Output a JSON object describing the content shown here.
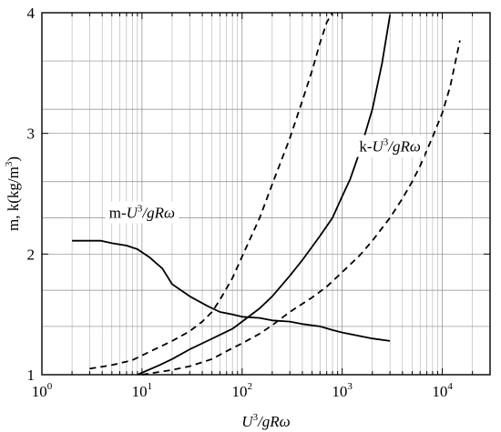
{
  "chart_data": {
    "type": "line",
    "x_scale": "log",
    "y_scale": "linear",
    "xlim": [
      1,
      30000
    ],
    "ylim": [
      1,
      4
    ],
    "grid": true,
    "x_ticks": [
      {
        "base": "10",
        "exp": "0"
      },
      {
        "base": "10",
        "exp": "1"
      },
      {
        "base": "10",
        "exp": "2"
      },
      {
        "base": "10",
        "exp": "3"
      },
      {
        "base": "10",
        "exp": "4"
      }
    ],
    "x_tick_values": [
      1,
      10,
      100,
      1000,
      10000
    ],
    "y_ticks": [
      "1",
      "2",
      "3",
      "4"
    ],
    "y_tick_values": [
      1,
      2,
      3,
      4
    ],
    "y_grid_values": [
      1.4,
      1.7,
      2.3,
      2.6,
      3.2,
      3.6
    ],
    "xlabel": {
      "main": "U",
      "sup": "3",
      "rest": "/gRω"
    },
    "ylabel": {
      "main": "m, k(kg/m",
      "sup": "3",
      "rest": ")"
    },
    "annotations": [
      {
        "prefix": "m-",
        "main": "U",
        "sup": "3",
        "rest": "/gRω",
        "x": 10,
        "y": 2.3
      },
      {
        "prefix": "k-",
        "main": "U",
        "sup": "3",
        "rest": "/gRω",
        "x": 3000,
        "y": 2.85
      }
    ],
    "series": [
      {
        "style": "solid",
        "x": [
          2,
          3.9,
          5,
          7,
          9,
          12,
          16,
          20,
          30,
          45,
          60,
          80,
          100,
          150,
          200,
          300,
          400,
          600,
          800,
          1000,
          1500,
          2000,
          3000
        ],
        "y": [
          2.11,
          2.11,
          2.09,
          2.07,
          2.04,
          1.97,
          1.88,
          1.75,
          1.65,
          1.57,
          1.52,
          1.5,
          1.48,
          1.47,
          1.45,
          1.44,
          1.42,
          1.4,
          1.37,
          1.35,
          1.32,
          1.3,
          1.28
        ]
      },
      {
        "style": "solid",
        "x": [
          9,
          15,
          20,
          30,
          40,
          60,
          80,
          100,
          150,
          200,
          300,
          400,
          500,
          600,
          800,
          1000,
          1200,
          1500,
          2000,
          2500,
          3000
        ],
        "y": [
          1.0,
          1.08,
          1.13,
          1.21,
          1.26,
          1.33,
          1.38,
          1.44,
          1.55,
          1.65,
          1.82,
          1.95,
          2.06,
          2.15,
          2.3,
          2.48,
          2.62,
          2.85,
          3.2,
          3.58,
          3.98
        ]
      },
      {
        "style": "dashed",
        "x": [
          3,
          5,
          8,
          10,
          15,
          20,
          30,
          40,
          50,
          60,
          80,
          100,
          150,
          200,
          300,
          400,
          500,
          600,
          700,
          800
        ],
        "y": [
          1.05,
          1.08,
          1.12,
          1.16,
          1.23,
          1.28,
          1.36,
          1.44,
          1.52,
          1.62,
          1.8,
          1.98,
          2.3,
          2.58,
          2.96,
          3.27,
          3.52,
          3.75,
          3.92,
          4.0
        ]
      },
      {
        "style": "dashed",
        "x": [
          10,
          20,
          30,
          50,
          80,
          100,
          150,
          200,
          300,
          500,
          700,
          1000,
          1500,
          2000,
          3000,
          4000,
          5000,
          6000,
          8000,
          10000,
          12000,
          15000
        ],
        "y": [
          1.0,
          1.04,
          1.07,
          1.13,
          1.22,
          1.26,
          1.34,
          1.41,
          1.52,
          1.64,
          1.73,
          1.85,
          1.99,
          2.11,
          2.3,
          2.46,
          2.6,
          2.73,
          2.97,
          3.17,
          3.39,
          3.77
        ]
      }
    ]
  }
}
